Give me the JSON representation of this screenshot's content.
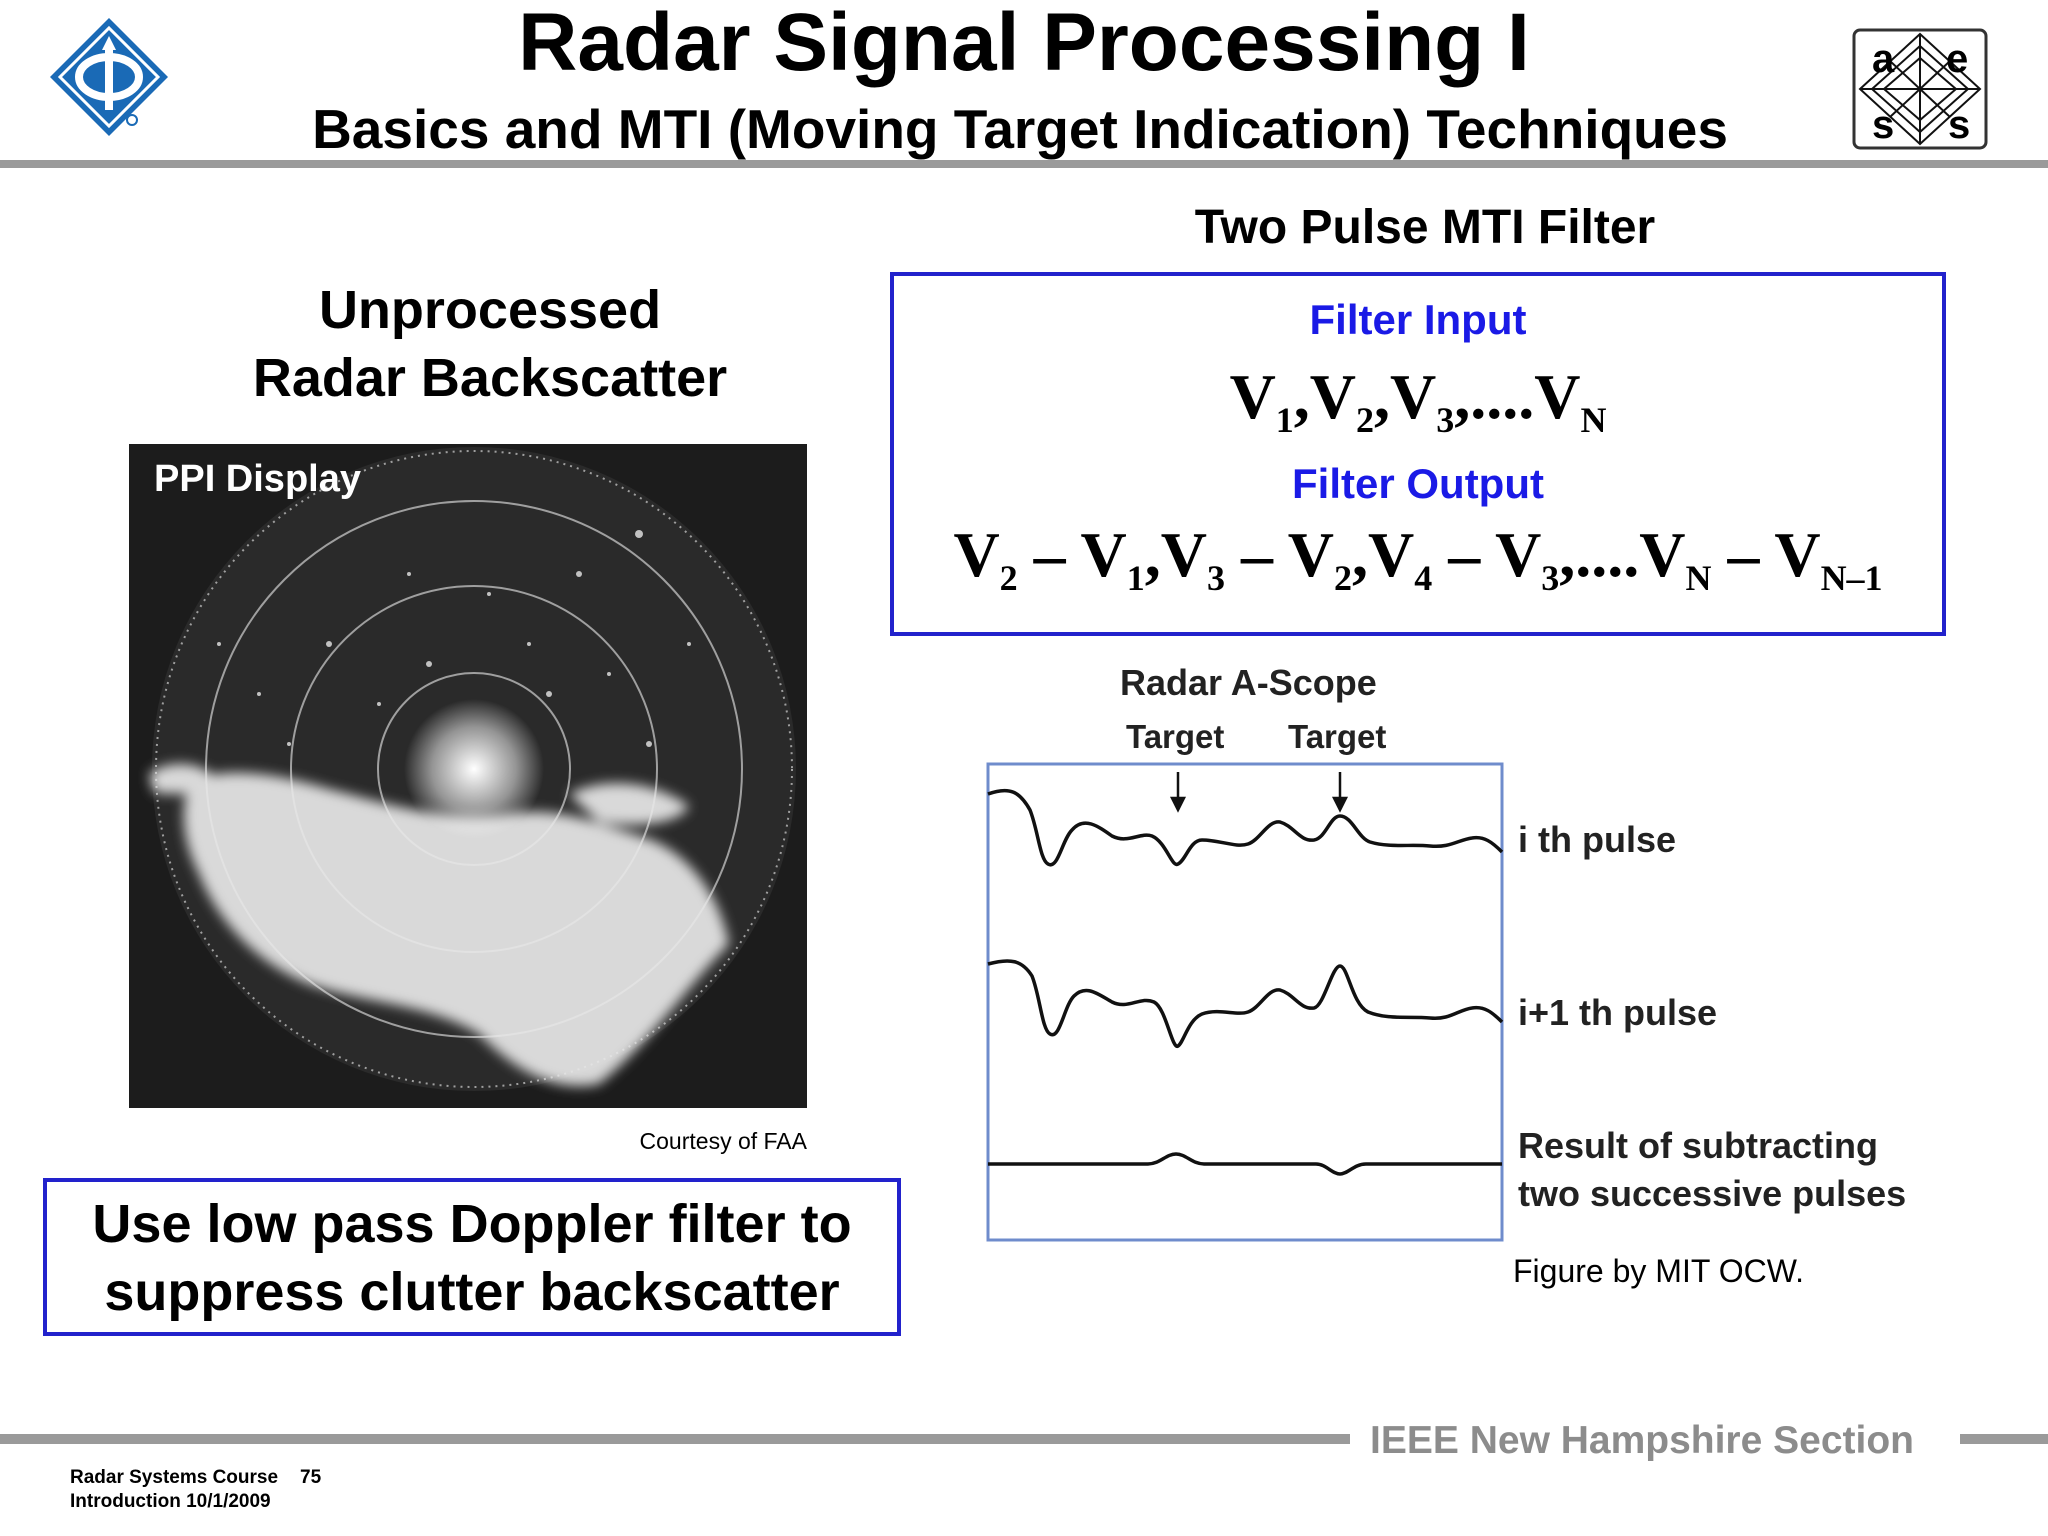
{
  "header": {
    "title": "Radar Signal Processing I",
    "subtitle": "Basics and MTI (Moving Target Indication) Techniques",
    "aess_letters": [
      "a",
      "e",
      "s",
      "s"
    ]
  },
  "left_panel": {
    "heading_line1": "Unprocessed",
    "heading_line2": "Radar Backscatter",
    "ppi_label": "PPI Display",
    "courtesy": "Courtesy of FAA",
    "callout_line1": "Use low pass Doppler filter to",
    "callout_line2": "suppress clutter backscatter"
  },
  "filter": {
    "heading": "Two Pulse MTI Filter",
    "input_label": "Filter Input",
    "output_label": "Filter Output",
    "input_eq": {
      "v": "V",
      "comma": ",",
      "ellipsis": "....",
      "s1": "1",
      "s2": "2",
      "s3": "3",
      "sN": "N"
    },
    "output_eq": {
      "v": "V",
      "minus": " – ",
      "comma": ",",
      "ellipsis": "....",
      "s1": "1",
      "s2": "2",
      "s3": "3",
      "s4": "4",
      "sN": "N",
      "sN1": "N–1"
    }
  },
  "ascope": {
    "title": "Radar A-Scope",
    "target1": "Target",
    "target2": "Target",
    "pulse_i": "i th pulse",
    "pulse_i1": "i+1 th pulse",
    "result_line1": "Result of subtracting",
    "result_line2": "two successive pulses",
    "credit": "Figure by MIT OCW."
  },
  "footer": {
    "section": "IEEE New Hampshire Section",
    "course": "Radar Systems Course",
    "page": "75",
    "date_line": "Introduction  10/1/2009"
  }
}
